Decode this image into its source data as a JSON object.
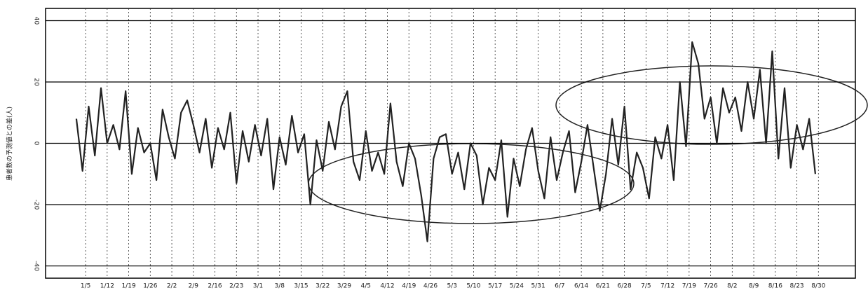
{
  "chart_data": {
    "type": "line",
    "ylabel": "患者数の予測値との差(人)",
    "x": [
      2,
      4,
      6,
      8,
      10,
      12,
      14,
      16,
      18,
      20,
      22,
      24,
      26,
      28,
      30,
      32,
      34,
      36,
      38,
      40,
      42,
      44,
      46,
      48,
      50,
      52,
      54,
      56,
      58,
      60,
      62,
      64,
      66,
      68,
      70,
      72,
      74,
      76,
      78,
      80,
      82,
      84,
      86,
      88,
      90,
      92,
      94,
      96,
      98,
      100,
      102,
      104,
      106,
      108,
      110,
      112,
      114,
      116,
      118,
      120,
      122,
      124,
      126,
      128,
      130,
      132,
      134,
      136,
      138,
      140,
      142,
      144,
      146,
      148,
      150,
      152,
      154,
      156,
      158,
      160,
      162,
      164,
      166,
      168,
      170,
      172,
      174,
      176,
      178,
      180,
      182,
      184,
      186,
      188,
      190,
      192,
      194,
      196,
      198,
      200,
      202,
      204,
      206,
      208,
      210,
      212,
      214,
      216,
      218,
      220,
      222,
      224,
      226,
      228,
      230,
      232,
      234,
      236,
      238,
      240,
      242
    ],
    "series": [
      {
        "color": "#222222",
        "values": [
          8,
          -9,
          12,
          -4,
          18,
          0,
          6,
          -2,
          17,
          -10,
          5,
          -3,
          0,
          -12,
          11,
          2,
          -5,
          10,
          14,
          6,
          -3,
          8,
          -8,
          5,
          -2,
          10,
          -13,
          4,
          -6,
          6,
          -4,
          8,
          -15,
          2,
          -7,
          9,
          -3,
          3,
          -20,
          1,
          -9,
          7,
          -2,
          12,
          17,
          -6,
          -12,
          4,
          -9,
          -3,
          -10,
          13,
          -6,
          -14,
          0,
          -5,
          -17,
          -32,
          -5,
          2,
          3,
          -10,
          -3,
          -15,
          0,
          -4,
          -20,
          -8,
          -12,
          1,
          -24,
          -5,
          -14,
          -2,
          5,
          -9,
          -18,
          2,
          -12,
          -3,
          4,
          -16,
          -6,
          6,
          -8,
          -22,
          -10,
          8,
          -7,
          12,
          -15,
          -3,
          -8,
          -18,
          2,
          -5,
          6,
          -12,
          20,
          -1,
          33,
          26,
          8,
          15,
          0,
          18,
          10,
          15,
          4,
          20,
          8,
          24,
          0,
          30,
          -5,
          18,
          -8,
          6,
          -2,
          8,
          -10
        ]
      }
    ],
    "xlim": [
      -8,
      255
    ],
    "xticks": [
      {
        "value": 5,
        "label": "1/5"
      },
      {
        "value": 12,
        "label": "1/12"
      },
      {
        "value": 19,
        "label": "1/19"
      },
      {
        "value": 26,
        "label": "1/26"
      },
      {
        "value": 33,
        "label": "2/2"
      },
      {
        "value": 40,
        "label": "2/9"
      },
      {
        "value": 47,
        "label": "2/16"
      },
      {
        "value": 54,
        "label": "2/23"
      },
      {
        "value": 61,
        "label": "3/1"
      },
      {
        "value": 68,
        "label": "3/8"
      },
      {
        "value": 75,
        "label": "3/15"
      },
      {
        "value": 82,
        "label": "3/22"
      },
      {
        "value": 89,
        "label": "3/29"
      },
      {
        "value": 96,
        "label": "4/5"
      },
      {
        "value": 103,
        "label": "4/12"
      },
      {
        "value": 110,
        "label": "4/19"
      },
      {
        "value": 117,
        "label": "4/26"
      },
      {
        "value": 124,
        "label": "5/3"
      },
      {
        "value": 131,
        "label": "5/10"
      },
      {
        "value": 138,
        "label": "5/17"
      },
      {
        "value": 145,
        "label": "5/24"
      },
      {
        "value": 152,
        "label": "5/31"
      },
      {
        "value": 159,
        "label": "6/7"
      },
      {
        "value": 166,
        "label": "6/14"
      },
      {
        "value": 173,
        "label": "6/21"
      },
      {
        "value": 180,
        "label": "6/28"
      },
      {
        "value": 187,
        "label": "7/5"
      },
      {
        "value": 194,
        "label": "7/12"
      },
      {
        "value": 201,
        "label": "7/19"
      },
      {
        "value": 208,
        "label": "7/26"
      },
      {
        "value": 215,
        "label": "8/2"
      },
      {
        "value": 222,
        "label": "8/9"
      },
      {
        "value": 229,
        "label": "8/16"
      },
      {
        "value": 236,
        "label": "8/23"
      },
      {
        "value": 243,
        "label": "8/30"
      }
    ],
    "ylim": [
      -44,
      44
    ],
    "yticks": [
      -40,
      -20,
      0,
      20,
      40
    ],
    "grid": true
  }
}
